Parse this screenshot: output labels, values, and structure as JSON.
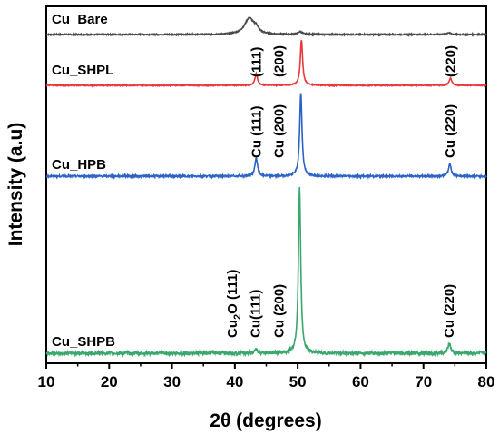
{
  "chart_data": {
    "type": "line",
    "xlabel": "2θ (degrees)",
    "ylabel": "Intensity (a.u)",
    "xlim": [
      10,
      80
    ],
    "x_ticks": [
      "10",
      "20",
      "30",
      "40",
      "50",
      "60",
      "70",
      "80"
    ],
    "grid": false,
    "series": [
      {
        "name": "Cu_Bare",
        "color": "#4a4a4a",
        "peaks": [
          {
            "x": 42.3,
            "height": 0.9,
            "width": 0.9
          },
          {
            "x": 43.4,
            "height": 0.25,
            "width": 0.4
          },
          {
            "x": 50.4,
            "height": 0.15,
            "width": 0.4
          },
          {
            "x": 74.0,
            "height": 0.1,
            "width": 0.4
          }
        ],
        "labels": []
      },
      {
        "name": "Cu_SHPL",
        "color": "#e8383d",
        "peaks": [
          {
            "x": 43.4,
            "height": 0.25,
            "width": 0.25
          },
          {
            "x": 50.6,
            "height": 1.0,
            "width": 0.22
          },
          {
            "x": 74.3,
            "height": 0.16,
            "width": 0.25
          }
        ],
        "labels": [
          {
            "text": "(111)",
            "x": 43.4
          },
          {
            "text": "(200)",
            "x": 47.0
          },
          {
            "text": "(220)",
            "x": 74.3
          }
        ]
      },
      {
        "name": "Cu_HPB",
        "color": "#2b63c6",
        "peaks": [
          {
            "x": 43.4,
            "height": 0.22,
            "width": 0.25
          },
          {
            "x": 50.5,
            "height": 1.0,
            "width": 0.22
          },
          {
            "x": 74.2,
            "height": 0.15,
            "width": 0.25
          }
        ],
        "labels": [
          {
            "text": "Cu (111)",
            "x": 43.4
          },
          {
            "text": "Cu (200)",
            "x": 47.0
          },
          {
            "text": "Cu (220)",
            "x": 74.2
          }
        ]
      },
      {
        "name": "Cu_SHPB",
        "color": "#3aa76d",
        "peaks": [
          {
            "x": 36.4,
            "height": 0.015,
            "width": 0.3
          },
          {
            "x": 43.3,
            "height": 0.03,
            "width": 0.25
          },
          {
            "x": 50.3,
            "height": 1.0,
            "width": 0.22
          },
          {
            "x": 74.1,
            "height": 0.06,
            "width": 0.25
          }
        ],
        "labels": [
          {
            "text": "Cu",
            "sub": "2",
            "text2": "O (111)",
            "x": 39.6
          },
          {
            "text": "Cu(111)",
            "x": 43.3
          },
          {
            "text": "Cu (200)",
            "x": 47.0
          },
          {
            "text": "Cu (220)",
            "x": 74.1
          }
        ]
      }
    ]
  }
}
